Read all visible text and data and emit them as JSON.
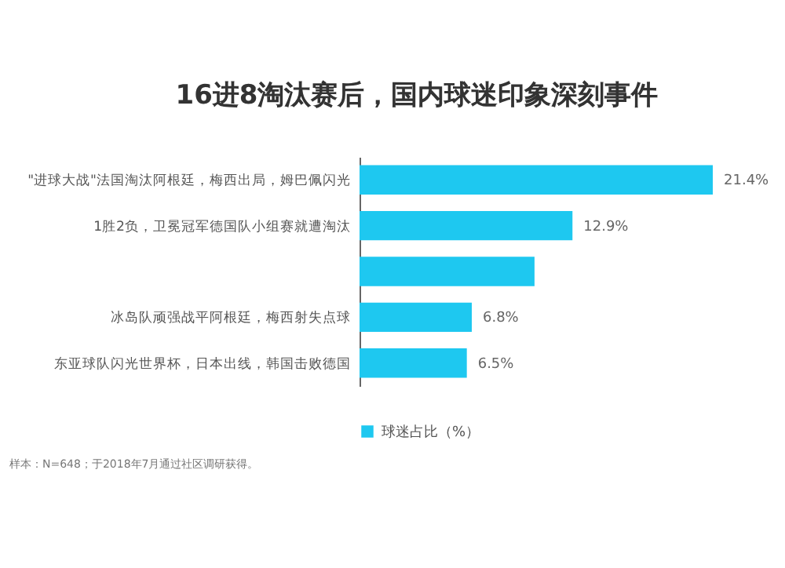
{
  "chart_data": {
    "type": "bar",
    "orientation": "horizontal",
    "title": "16进8淘汰赛后，国内球迷印象深刻事件",
    "categories": [
      "\"进球大战\"法国淘汰阿根廷，梅西出局，姆巴佩闪光",
      "1胜2负，卫冕冠军德国队小组赛就遭淘汰",
      null,
      "冰岛队顽强战平阿根廷，梅西射失点球",
      "东亚球队闪光世界杯，日本出线，韩国击败德国"
    ],
    "series": [
      {
        "name": "球迷占比（%）",
        "color": "#1ec8f0",
        "values": [
          21.4,
          12.9,
          10.6,
          6.8,
          6.5
        ],
        "value_labels": [
          "21.4%",
          "12.9%",
          null,
          "6.8%",
          "6.5%"
        ]
      }
    ],
    "legend": "bottom",
    "annotations": [
      "样本：N=648；于2018年7月通过社区调研获得。"
    ]
  }
}
